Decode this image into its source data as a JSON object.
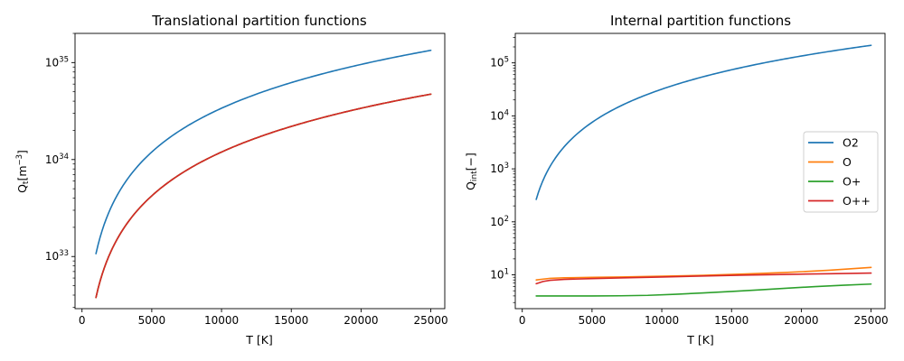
{
  "chart_data": [
    {
      "type": "line",
      "title": "Translational partition functions",
      "xlabel": "T [K]",
      "ylabel": {
        "base": "Q",
        "sub": "t",
        "unit_open": "[m",
        "unit_sup": "−3",
        "unit_close": "]"
      },
      "yscale": "log",
      "xlim": [
        -500,
        26000
      ],
      "ylim": [
        2.9e+32,
        2e+35
      ],
      "xticks": [
        0,
        5000,
        10000,
        15000,
        20000,
        25000
      ],
      "xtick_labels": [
        "0",
        "5000",
        "10000",
        "15000",
        "20000",
        "25000"
      ],
      "yticks": [
        {
          "value": 1e+33,
          "base": "10",
          "exp": "33"
        },
        {
          "value": 1e+34,
          "base": "10",
          "exp": "34"
        },
        {
          "value": 1e+35,
          "base": "10",
          "exp": "35"
        }
      ],
      "series": [
        {
          "name": "O2",
          "color": "#1f77b4",
          "formula": "power",
          "x_start": 1000,
          "x_end": 25000,
          "y_start": 1.07e+33,
          "exponent": 1.5
        },
        {
          "name": "O",
          "color": "#ff7f0e",
          "formula": "power",
          "x_start": 1000,
          "x_end": 25000,
          "y_start": 3.78e+32,
          "exponent": 1.5
        },
        {
          "name": "O+",
          "color": "#2ca02c",
          "formula": "power",
          "x_start": 1000,
          "x_end": 25000,
          "y_start": 3.78e+32,
          "exponent": 1.5
        },
        {
          "name": "O++",
          "color": "#d62728",
          "formula": "power",
          "x_start": 1000,
          "x_end": 25000,
          "y_start": 3.78e+32,
          "exponent": 1.5
        }
      ]
    },
    {
      "type": "line",
      "title": "Internal partition functions",
      "xlabel": "T [K]",
      "ylabel": {
        "base": "Q",
        "sub": "int",
        "unit_open": "[",
        "unit_sup": "",
        "unit_close": "−]"
      },
      "yscale": "log",
      "xlim": [
        -500,
        26000
      ],
      "ylim": [
        2.3,
        360000.0
      ],
      "xticks": [
        0,
        5000,
        10000,
        15000,
        20000,
        25000
      ],
      "xtick_labels": [
        "0",
        "5000",
        "10000",
        "15000",
        "20000",
        "25000"
      ],
      "yticks": [
        {
          "value": 10,
          "base": "10",
          "exp": "1"
        },
        {
          "value": 100,
          "base": "10",
          "exp": "2"
        },
        {
          "value": 1000,
          "base": "10",
          "exp": "3"
        },
        {
          "value": 10000,
          "base": "10",
          "exp": "4"
        },
        {
          "value": 100000,
          "base": "10",
          "exp": "5"
        }
      ],
      "legend": {
        "position": "center-right",
        "entries": [
          "O2",
          "O",
          "O+",
          "O++"
        ]
      },
      "series": [
        {
          "name": "O2",
          "color": "#1f77b4",
          "formula": "power",
          "x_start": 1000,
          "x_end": 25000,
          "y_start": 265,
          "exponent": 2.08
        },
        {
          "name": "O",
          "color": "#ff7f0e",
          "x": [
            1000,
            2000,
            3000,
            5000,
            7000,
            10000,
            13000,
            16000,
            19000,
            22000,
            25000
          ],
          "y": [
            8.0,
            8.6,
            8.8,
            8.95,
            9.1,
            9.4,
            9.8,
            10.4,
            11.1,
            12.2,
            13.8
          ]
        },
        {
          "name": "O+",
          "color": "#2ca02c",
          "x": [
            1000,
            3000,
            5000,
            7000,
            9000,
            11000,
            13000,
            15000,
            17000,
            19000,
            21000,
            23000,
            25000
          ],
          "y": [
            4.0,
            4.0,
            4.0,
            4.02,
            4.1,
            4.3,
            4.55,
            4.85,
            5.2,
            5.6,
            6.0,
            6.35,
            6.7
          ]
        },
        {
          "name": "O++",
          "color": "#d62728",
          "x": [
            1000,
            1500,
            2000,
            3000,
            5000,
            7000,
            10000,
            13000,
            16000,
            19000,
            22000,
            25000
          ],
          "y": [
            6.8,
            7.5,
            7.9,
            8.2,
            8.5,
            8.75,
            9.1,
            9.5,
            9.9,
            10.2,
            10.5,
            10.8
          ]
        }
      ]
    }
  ]
}
